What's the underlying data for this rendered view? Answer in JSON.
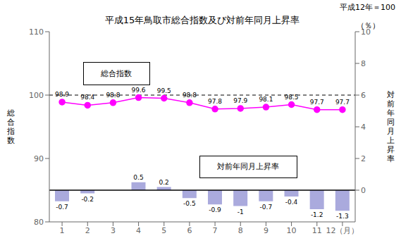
{
  "chart_data": {
    "type": "bar",
    "title": "平成15年鳥取市総合指数及び対前年同月上昇率",
    "categories": [
      "1",
      "2",
      "3",
      "4",
      "5",
      "6",
      "7",
      "8",
      "9",
      "10",
      "11",
      "12（月）"
    ],
    "series": [
      {
        "name": "総合指数",
        "type": "line",
        "color": "#FF00FF",
        "marker": "circle",
        "values": [
          98.9,
          98.4,
          98.8,
          99.6,
          99.5,
          98.8,
          97.8,
          97.9,
          98.1,
          98.5,
          97.7,
          97.7
        ]
      },
      {
        "name": "対前年同月上昇率",
        "type": "bar",
        "axis": "y2",
        "color": "#AAAADD",
        "values": [
          -0.7,
          -0.2,
          0.0,
          0.5,
          0.2,
          -0.5,
          -0.9,
          -1.0,
          -0.7,
          -0.4,
          -1.2,
          -1.3
        ]
      }
    ],
    "ylabel": "総\n合\n指\n数",
    "y2label": "対\n前\n年\n同\n月\n上\n昇\n率",
    "ylim": [
      80,
      110
    ],
    "yticks": [
      80,
      90,
      100,
      110
    ],
    "y2lim": [
      -2,
      10
    ],
    "y2ticks": [
      0,
      2,
      4,
      6,
      8,
      10
    ],
    "data_labels": true,
    "grid": false,
    "hlines": [
      {
        "value": 100,
        "axis": "y",
        "line_style": "dashed"
      },
      {
        "value": 0,
        "axis": "y2",
        "line_style": "solid"
      }
    ],
    "annotations": [
      "平成12年＝100",
      "（％）"
    ]
  }
}
